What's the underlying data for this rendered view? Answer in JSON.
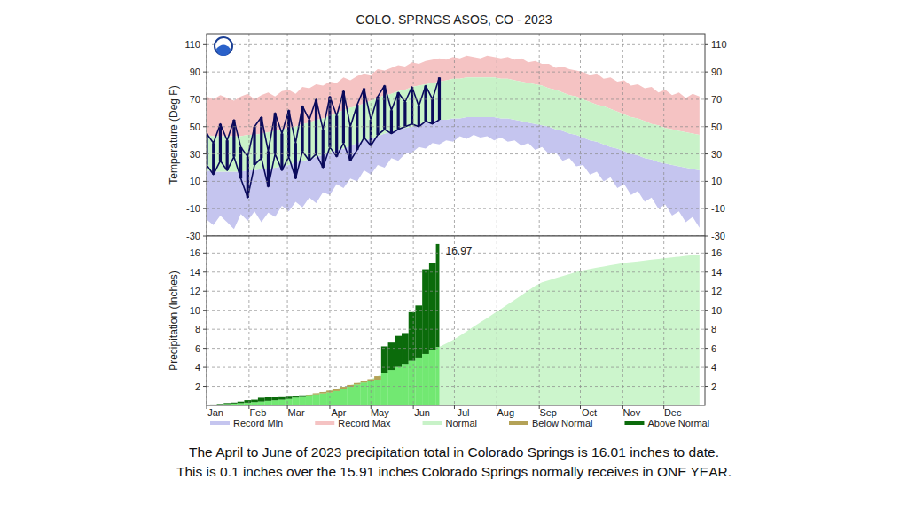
{
  "chart_data": [
    {
      "type": "area",
      "title": "COLO. SPRNGS ASOS, CO - 2023",
      "y_label": "Temperature (Deg F)",
      "x": [
        1,
        6,
        11,
        16,
        21,
        26,
        31,
        36,
        41,
        46,
        51,
        56,
        61,
        66,
        71,
        76,
        81,
        86,
        91,
        96,
        101,
        106,
        111,
        116,
        121,
        126,
        131,
        136,
        141,
        146,
        151,
        156,
        161,
        166,
        171,
        176,
        181,
        186,
        191,
        196,
        201,
        206,
        211,
        216,
        221,
        226,
        231,
        236,
        241,
        246,
        251,
        256,
        261,
        266,
        271,
        276,
        281,
        286,
        291,
        296,
        301,
        306,
        311,
        316,
        321,
        326,
        331,
        336,
        341,
        346,
        351,
        356,
        361
      ],
      "xlim": [
        1,
        365
      ],
      "xticks": [
        {
          "value": 1,
          "label": "Jan"
        },
        {
          "value": 32,
          "label": "Feb"
        },
        {
          "value": 60,
          "label": "Mar"
        },
        {
          "value": 91,
          "label": "Apr"
        },
        {
          "value": 121,
          "label": "May"
        },
        {
          "value": 152,
          "label": "Jun"
        },
        {
          "value": 182,
          "label": "Jul"
        },
        {
          "value": 213,
          "label": "Aug"
        },
        {
          "value": 244,
          "label": "Sep"
        },
        {
          "value": 274,
          "label": "Oct"
        },
        {
          "value": 305,
          "label": "Nov"
        },
        {
          "value": 335,
          "label": "Dec"
        }
      ],
      "ylim": [
        -30,
        118
      ],
      "yticks": [
        -30,
        -10,
        10,
        30,
        50,
        70,
        90,
        110
      ],
      "grid": true,
      "tick_labels": "y",
      "legend": "bottom",
      "series": [
        {
          "name": "Record Min",
          "color": "#c5c5ef",
          "type": "area",
          "values": [
            -18,
            -22,
            -15,
            -20,
            -25,
            -14,
            -19,
            -12,
            -20,
            -13,
            -16,
            -8,
            -12,
            -5,
            -9,
            -2,
            -6,
            2,
            0,
            8,
            5,
            12,
            10,
            18,
            15,
            22,
            20,
            27,
            25,
            30,
            31,
            35,
            34,
            38,
            37,
            40,
            39,
            43,
            41,
            44,
            42,
            43,
            40,
            42,
            39,
            40,
            36,
            38,
            33,
            35,
            30,
            31,
            25,
            27,
            21,
            22,
            15,
            17,
            10,
            13,
            5,
            8,
            0,
            3,
            -5,
            -2,
            -10,
            -7,
            -15,
            -12,
            -20,
            -16,
            -24
          ]
        },
        {
          "name": "Record Max",
          "color": "#f5c3c3",
          "type": "area",
          "values": [
            72,
            70,
            73,
            71,
            69,
            72,
            74,
            70,
            73,
            75,
            72,
            76,
            77,
            74,
            79,
            78,
            81,
            80,
            83,
            82,
            86,
            84,
            87,
            89,
            88,
            92,
            91,
            93,
            95,
            94,
            97,
            96,
            98,
            99,
            100,
            99,
            101,
            100,
            102,
            101,
            100,
            102,
            101,
            100,
            101,
            99,
            100,
            97,
            98,
            96,
            96,
            93,
            94,
            92,
            91,
            90,
            88,
            89,
            85,
            86,
            83,
            84,
            80,
            81,
            78,
            79,
            75,
            77,
            73,
            75,
            71,
            74,
            72
          ]
        },
        {
          "name": "Normal",
          "color": "#c8f2c8",
          "type": "area",
          "values": [
            44,
            43,
            43,
            43,
            43,
            43,
            44,
            44,
            45,
            46,
            47,
            48,
            49,
            50,
            52,
            53,
            55,
            56,
            58,
            60,
            62,
            64,
            65,
            67,
            69,
            71,
            73,
            74,
            76,
            77,
            79,
            80,
            81,
            82,
            83,
            84,
            85,
            85,
            86,
            86,
            86,
            86,
            86,
            85,
            85,
            84,
            83,
            82,
            81,
            80,
            78,
            77,
            75,
            73,
            72,
            70,
            68,
            66,
            65,
            63,
            61,
            59,
            57,
            56,
            54,
            52,
            51,
            49,
            48,
            47,
            46,
            45,
            44
          ],
          "low": [
            18,
            17,
            17,
            17,
            17,
            17,
            18,
            18,
            19,
            19,
            20,
            21,
            22,
            24,
            25,
            26,
            28,
            29,
            31,
            33,
            34,
            36,
            38,
            40,
            41,
            43,
            45,
            46,
            48,
            49,
            50,
            52,
            53,
            54,
            55,
            55,
            56,
            56,
            57,
            57,
            57,
            57,
            57,
            56,
            56,
            55,
            54,
            53,
            52,
            51,
            50,
            48,
            47,
            45,
            44,
            42,
            40,
            39,
            37,
            35,
            34,
            32,
            30,
            29,
            27,
            26,
            24,
            23,
            22,
            21,
            20,
            19,
            18
          ]
        },
        {
          "color": "#0b0b5c",
          "type": "bar",
          "values": [
            45,
            38,
            52,
            40,
            55,
            35,
            28,
            50,
            57,
            32,
            60,
            45,
            62,
            38,
            65,
            55,
            70,
            48,
            72,
            58,
            76,
            50,
            66,
            78,
            55,
            72,
            80,
            62,
            75,
            68,
            79,
            65,
            80,
            70,
            86,
            null,
            null,
            null,
            null,
            null,
            null,
            null,
            null,
            null,
            null,
            null,
            null,
            null,
            null,
            null,
            null,
            null,
            null,
            null,
            null,
            null,
            null,
            null,
            null,
            null,
            null,
            null,
            null,
            null,
            null,
            null,
            null,
            null,
            null,
            null,
            null,
            null,
            null
          ],
          "low": [
            22,
            15,
            25,
            18,
            28,
            12,
            -2,
            22,
            27,
            6,
            30,
            18,
            28,
            12,
            32,
            25,
            30,
            20,
            35,
            28,
            38,
            25,
            33,
            42,
            36,
            44,
            48,
            45,
            48,
            50,
            52,
            50,
            54,
            52,
            55,
            null,
            null,
            null,
            null,
            null,
            null,
            null,
            null,
            null,
            null,
            null,
            null,
            null,
            null,
            null,
            null,
            null,
            null,
            null,
            null,
            null,
            null,
            null,
            null,
            null,
            null,
            null,
            null,
            null,
            null,
            null,
            null,
            null,
            null,
            null,
            null,
            null,
            null
          ]
        }
      ]
    },
    {
      "type": "area",
      "y_label": "Precipitation (Inches)",
      "x": [
        1,
        6,
        11,
        16,
        21,
        26,
        31,
        36,
        41,
        46,
        51,
        56,
        61,
        66,
        71,
        76,
        81,
        86,
        91,
        96,
        101,
        106,
        111,
        116,
        121,
        126,
        131,
        136,
        141,
        146,
        151,
        156,
        161,
        166,
        171,
        176,
        181,
        186,
        191,
        196,
        201,
        206,
        211,
        216,
        221,
        226,
        231,
        236,
        241,
        246,
        251,
        256,
        261,
        266,
        271,
        276,
        281,
        286,
        291,
        296,
        301,
        306,
        311,
        316,
        321,
        326,
        331,
        336,
        341,
        346,
        351,
        356,
        361
      ],
      "xlim": [
        1,
        365
      ],
      "xticks": [
        {
          "value": 1,
          "label": "Jan"
        },
        {
          "value": 32,
          "label": "Feb"
        },
        {
          "value": 60,
          "label": "Mar"
        },
        {
          "value": 91,
          "label": "Apr"
        },
        {
          "value": 121,
          "label": "May"
        },
        {
          "value": 152,
          "label": "Jun"
        },
        {
          "value": 182,
          "label": "Jul"
        },
        {
          "value": 213,
          "label": "Aug"
        },
        {
          "value": 244,
          "label": "Sep"
        },
        {
          "value": 274,
          "label": "Oct"
        },
        {
          "value": 305,
          "label": "Nov"
        },
        {
          "value": 335,
          "label": "Dec"
        }
      ],
      "ylim": [
        0,
        17.8
      ],
      "yticks": [
        2,
        4,
        6,
        8,
        10,
        12,
        14,
        16
      ],
      "grid": true,
      "legend": "bottom",
      "series": [
        {
          "color": "#ccf5cc",
          "type": "area",
          "values": [
            0,
            0.05,
            0.1,
            0.15,
            0.2,
            0.24,
            0.29,
            0.35,
            0.41,
            0.48,
            0.54,
            0.6,
            0.68,
            0.82,
            0.97,
            1.11,
            1.26,
            1.4,
            1.55,
            1.75,
            1.95,
            2.15,
            2.35,
            2.55,
            2.75,
            3.07,
            3.4,
            3.72,
            4.04,
            4.36,
            4.69,
            5.04,
            5.41,
            5.78,
            6.14,
            6.51,
            6.88,
            7.32,
            7.79,
            8.26,
            8.73,
            9.19,
            9.66,
            10.14,
            10.62,
            11.1,
            11.59,
            12.08,
            12.56,
            12.94,
            13.15,
            13.37,
            13.59,
            13.8,
            14.02,
            14.2,
            14.33,
            14.46,
            14.59,
            14.72,
            14.85,
            14.97,
            15.05,
            15.13,
            15.22,
            15.3,
            15.38,
            15.47,
            15.55,
            15.62,
            15.7,
            15.78,
            15.85
          ]
        },
        {
          "name": "Below Normal",
          "color": "#b4a257",
          "type": "bar",
          "values": [
            null,
            null,
            null,
            null,
            null,
            null,
            null,
            null,
            null,
            null,
            null,
            null,
            null,
            null,
            null,
            1.1,
            1.15,
            1.25,
            1.35,
            1.5,
            1.7,
            1.95,
            2.2,
            2.4,
            2.55,
            2.7,
            null,
            null,
            null,
            null,
            null,
            null,
            null,
            null,
            null,
            null,
            null,
            null,
            null,
            null,
            null,
            null,
            null,
            null,
            null,
            null,
            null,
            null,
            null,
            null,
            null,
            null,
            null,
            null,
            null,
            null,
            null,
            null,
            null,
            null,
            null,
            null,
            null,
            null,
            null,
            null,
            null,
            null,
            null,
            null,
            null,
            null,
            null
          ]
        },
        {
          "name": "Above Normal",
          "color": "#0b6b0b",
          "type": "bar",
          "values": [
            0.02,
            0.1,
            0.15,
            0.25,
            0.3,
            0.4,
            0.55,
            0.6,
            0.8,
            0.85,
            0.9,
            0.95,
            1.0,
            1.02,
            1.05,
            null,
            null,
            null,
            null,
            null,
            null,
            null,
            null,
            null,
            null,
            null,
            6.2,
            6.6,
            7.3,
            7.6,
            9.8,
            10.5,
            14.3,
            15.0,
            16.97,
            null,
            null,
            null,
            null,
            null,
            null,
            null,
            null,
            null,
            null,
            null,
            null,
            null,
            null,
            null,
            null,
            null,
            null,
            null,
            null,
            null,
            null,
            null,
            null,
            null,
            null,
            null,
            null,
            null,
            null,
            null,
            null,
            null,
            null,
            null,
            null,
            null,
            null
          ]
        }
      ],
      "annotations": [
        {
          "text": "16.97",
          "x": 171,
          "y": 16.97
        }
      ]
    }
  ],
  "caption": [
    "The April to June of 2023 precipitation total in Colorado Springs is 16.01 inches to date.",
    "This is 0.1 inches over the 15.91 inches Colorado Springs normally receives in ONE YEAR."
  ]
}
